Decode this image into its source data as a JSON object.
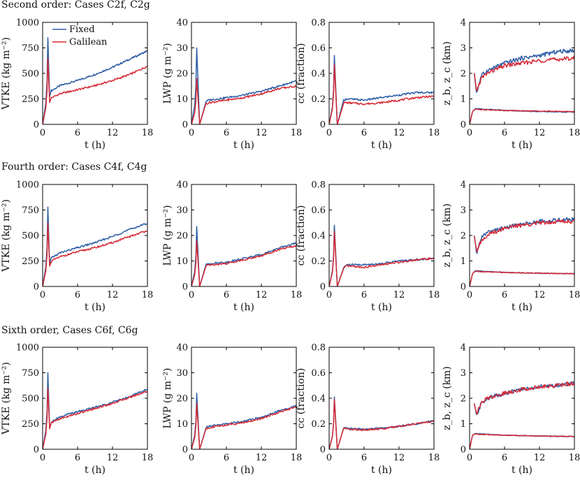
{
  "legend": [
    "Fixed",
    "Galilean"
  ],
  "colors": {
    "fixed": "#2f5ea6",
    "galilean": "#d62a35"
  },
  "rows": [
    {
      "title": "Second order: Cases C2f, C2g"
    },
    {
      "title": "Fourth order: Cases C4f, C4g"
    },
    {
      "title": "Sixth order, Cases C6f, C6g"
    }
  ],
  "xlabel": "t (h)",
  "xticks": [
    "0",
    "6",
    "12",
    "18"
  ],
  "columns": [
    {
      "ylabel": "VTKE (kg m⁻²)",
      "yticks": [
        "0",
        "250",
        "500",
        "750",
        "1000"
      ]
    },
    {
      "ylabel": "LWP (g m⁻²)",
      "yticks": [
        "0",
        "10",
        "20",
        "30",
        "40"
      ]
    },
    {
      "ylabel": "cc (fraction)",
      "yticks": [
        "0",
        "0.2",
        "0.4",
        "0.6",
        "0.8"
      ]
    },
    {
      "ylabel": "z_b, z_c (km)",
      "yticks": [
        "0",
        "1",
        "2",
        "3",
        "4"
      ]
    }
  ],
  "chart_data": [
    {
      "type": "line",
      "row": 0,
      "col": 0,
      "xlim": [
        0,
        18
      ],
      "ylim": [
        0,
        1000
      ],
      "peak": {
        "t": 0.9,
        "fixed": 850,
        "galilean": 650
      },
      "min": {
        "t": 1.2,
        "fixed": 270,
        "galilean": 215
      },
      "series": [
        {
          "name": "Fixed",
          "x": [
            1.5,
            3,
            6,
            9,
            12,
            15,
            18
          ],
          "values": [
            330,
            380,
            430,
            490,
            560,
            640,
            720
          ]
        },
        {
          "name": "Galilean",
          "x": [
            1.5,
            3,
            6,
            9,
            12,
            15,
            18
          ],
          "values": [
            260,
            300,
            340,
            380,
            430,
            490,
            570
          ]
        }
      ]
    },
    {
      "type": "line",
      "row": 0,
      "col": 1,
      "xlim": [
        0,
        18
      ],
      "ylim": [
        0,
        40
      ],
      "peak": {
        "t": 0.9,
        "fixed": 30,
        "galilean": 18
      },
      "min": {
        "t": 1.4,
        "fixed": 0,
        "galilean": 0
      },
      "series": [
        {
          "name": "Fixed",
          "x": [
            2.5,
            3,
            6,
            9,
            12,
            15,
            18
          ],
          "values": [
            9,
            9.5,
            10.5,
            11.5,
            13,
            15,
            17
          ]
        },
        {
          "name": "Galilean",
          "x": [
            2.5,
            3,
            6,
            9,
            12,
            15,
            18
          ],
          "values": [
            8,
            8.5,
            9.5,
            10.5,
            12,
            14,
            15
          ]
        }
      ]
    },
    {
      "type": "line",
      "row": 0,
      "col": 2,
      "xlim": [
        0,
        18
      ],
      "ylim": [
        0,
        0.8
      ],
      "peak": {
        "t": 0.9,
        "fixed": 0.54,
        "galilean": 0.47
      },
      "min": {
        "t": 1.4,
        "fixed": 0.0,
        "galilean": 0.0
      },
      "series": [
        {
          "name": "Fixed",
          "x": [
            2.5,
            3,
            6,
            9,
            12,
            15,
            18
          ],
          "values": [
            0.19,
            0.2,
            0.19,
            0.21,
            0.23,
            0.25,
            0.25
          ]
        },
        {
          "name": "Galilean",
          "x": [
            2.5,
            3,
            6,
            9,
            12,
            15,
            18
          ],
          "values": [
            0.17,
            0.17,
            0.16,
            0.17,
            0.19,
            0.21,
            0.22
          ]
        }
      ]
    },
    {
      "type": "line",
      "row": 0,
      "col": 3,
      "xlim": [
        0,
        18
      ],
      "ylim": [
        0,
        4
      ],
      "series": [
        {
          "name": "Fixed",
          "x": [
            0.8,
            1.2,
            2,
            3,
            6,
            9,
            12,
            15,
            18
          ],
          "values": [
            2.0,
            1.2,
            1.9,
            2.1,
            2.4,
            2.6,
            2.7,
            2.85,
            2.9
          ]
        },
        {
          "name": "Galilean",
          "x": [
            0.8,
            1.2,
            2,
            3,
            6,
            9,
            12,
            15,
            18
          ],
          "values": [
            2.0,
            1.3,
            1.8,
            2.0,
            2.3,
            2.4,
            2.5,
            2.55,
            2.6
          ]
        },
        {
          "name": "Fixed",
          "x": [
            0,
            0.5,
            1,
            2,
            6,
            12,
            18
          ],
          "values": [
            0.0,
            0.5,
            0.62,
            0.6,
            0.55,
            0.5,
            0.48
          ]
        },
        {
          "name": "Galilean",
          "x": [
            0,
            0.5,
            1,
            2,
            6,
            12,
            18
          ],
          "values": [
            0.0,
            0.5,
            0.6,
            0.58,
            0.54,
            0.52,
            0.5
          ]
        }
      ]
    },
    {
      "type": "line",
      "row": 1,
      "col": 0,
      "xlim": [
        0,
        18
      ],
      "ylim": [
        0,
        1000
      ],
      "peak": {
        "t": 0.9,
        "fixed": 780,
        "galilean": 620
      },
      "min": {
        "t": 1.2,
        "fixed": 220,
        "galilean": 200
      },
      "series": [
        {
          "name": "Fixed",
          "x": [
            1.5,
            3,
            6,
            9,
            12,
            15,
            18
          ],
          "values": [
            280,
            330,
            380,
            430,
            490,
            560,
            620
          ]
        },
        {
          "name": "Galilean",
          "x": [
            1.5,
            3,
            6,
            9,
            12,
            15,
            18
          ],
          "values": [
            250,
            290,
            340,
            380,
            430,
            490,
            550
          ]
        }
      ]
    },
    {
      "type": "line",
      "row": 1,
      "col": 1,
      "xlim": [
        0,
        18
      ],
      "ylim": [
        0,
        40
      ],
      "peak": {
        "t": 0.9,
        "fixed": 23.5,
        "galilean": 18
      },
      "min": {
        "t": 1.4,
        "fixed": 0,
        "galilean": 0
      },
      "series": [
        {
          "name": "Fixed",
          "x": [
            2.5,
            3,
            6,
            9,
            12,
            15,
            18
          ],
          "values": [
            8.5,
            9,
            9.5,
            11,
            12.5,
            15,
            17
          ]
        },
        {
          "name": "Galilean",
          "x": [
            2.5,
            3,
            6,
            9,
            12,
            15,
            18
          ],
          "values": [
            8,
            8.5,
            9,
            10.5,
            12,
            14.5,
            16
          ]
        }
      ]
    },
    {
      "type": "line",
      "row": 1,
      "col": 2,
      "xlim": [
        0,
        18
      ],
      "ylim": [
        0,
        0.8
      ],
      "peak": {
        "t": 0.9,
        "fixed": 0.48,
        "galilean": 0.43
      },
      "min": {
        "t": 1.4,
        "fixed": 0.0,
        "galilean": 0.0
      },
      "series": [
        {
          "name": "Fixed",
          "x": [
            2.5,
            3,
            6,
            9,
            12,
            15,
            18
          ],
          "values": [
            0.15,
            0.17,
            0.17,
            0.18,
            0.2,
            0.21,
            0.22
          ]
        },
        {
          "name": "Galilean",
          "x": [
            2.5,
            3,
            6,
            9,
            12,
            15,
            18
          ],
          "values": [
            0.14,
            0.16,
            0.15,
            0.17,
            0.19,
            0.21,
            0.22
          ]
        }
      ]
    },
    {
      "type": "line",
      "row": 1,
      "col": 3,
      "xlim": [
        0,
        18
      ],
      "ylim": [
        0,
        4
      ],
      "series": [
        {
          "name": "Fixed",
          "x": [
            0.8,
            1.2,
            2,
            3,
            6,
            9,
            12,
            15,
            18
          ],
          "values": [
            2.0,
            1.3,
            1.9,
            2.1,
            2.3,
            2.45,
            2.55,
            2.6,
            2.65
          ]
        },
        {
          "name": "Galilean",
          "x": [
            0.8,
            1.2,
            2,
            3,
            6,
            9,
            12,
            15,
            18
          ],
          "values": [
            2.0,
            1.4,
            1.8,
            2.0,
            2.3,
            2.4,
            2.5,
            2.55,
            2.55
          ]
        },
        {
          "name": "Fixed",
          "x": [
            0,
            0.5,
            1,
            2,
            6,
            12,
            18
          ],
          "values": [
            0.0,
            0.5,
            0.62,
            0.6,
            0.55,
            0.52,
            0.5
          ]
        },
        {
          "name": "Galilean",
          "x": [
            0,
            0.5,
            1,
            2,
            6,
            12,
            18
          ],
          "values": [
            0.0,
            0.5,
            0.6,
            0.58,
            0.55,
            0.52,
            0.5
          ]
        }
      ]
    },
    {
      "type": "line",
      "row": 2,
      "col": 0,
      "xlim": [
        0,
        18
      ],
      "ylim": [
        0,
        1000
      ],
      "peak": {
        "t": 0.9,
        "fixed": 750,
        "galilean": 600
      },
      "min": {
        "t": 1.2,
        "fixed": 210,
        "galilean": 200
      },
      "series": [
        {
          "name": "Fixed",
          "x": [
            1.5,
            3,
            6,
            9,
            12,
            15,
            18
          ],
          "values": [
            270,
            320,
            370,
            410,
            460,
            520,
            590
          ]
        },
        {
          "name": "Galilean",
          "x": [
            1.5,
            3,
            6,
            9,
            12,
            15,
            18
          ],
          "values": [
            260,
            300,
            350,
            400,
            450,
            510,
            570
          ]
        }
      ]
    },
    {
      "type": "line",
      "row": 2,
      "col": 1,
      "xlim": [
        0,
        18
      ],
      "ylim": [
        0,
        40
      ],
      "peak": {
        "t": 0.9,
        "fixed": 22,
        "galilean": 18
      },
      "min": {
        "t": 1.4,
        "fixed": 0,
        "galilean": 0
      },
      "series": [
        {
          "name": "Fixed",
          "x": [
            2.5,
            3,
            6,
            9,
            12,
            15,
            18
          ],
          "values": [
            8.5,
            9,
            10,
            11,
            12.5,
            15,
            17
          ]
        },
        {
          "name": "Galilean",
          "x": [
            2.5,
            3,
            6,
            9,
            12,
            15,
            18
          ],
          "values": [
            8,
            8.5,
            9.5,
            10.5,
            12,
            14.5,
            16.5
          ]
        }
      ]
    },
    {
      "type": "line",
      "row": 2,
      "col": 2,
      "xlim": [
        0,
        18
      ],
      "ylim": [
        0,
        0.8
      ],
      "peak": {
        "t": 0.9,
        "fixed": 0.41,
        "galilean": 0.39
      },
      "min": {
        "t": 1.4,
        "fixed": 0.0,
        "galilean": 0.0
      },
      "series": [
        {
          "name": "Fixed",
          "x": [
            2.5,
            3,
            6,
            9,
            12,
            15,
            18
          ],
          "values": [
            0.17,
            0.165,
            0.155,
            0.165,
            0.18,
            0.2,
            0.225
          ]
        },
        {
          "name": "Galilean",
          "x": [
            2.5,
            3,
            6,
            9,
            12,
            15,
            18
          ],
          "values": [
            0.165,
            0.16,
            0.15,
            0.16,
            0.18,
            0.2,
            0.22
          ]
        }
      ]
    },
    {
      "type": "line",
      "row": 2,
      "col": 3,
      "xlim": [
        0,
        18
      ],
      "ylim": [
        0,
        4
      ],
      "series": [
        {
          "name": "Fixed",
          "x": [
            0.8,
            1.2,
            2,
            3,
            6,
            9,
            12,
            15,
            18
          ],
          "values": [
            1.8,
            1.3,
            1.8,
            2.0,
            2.2,
            2.35,
            2.45,
            2.5,
            2.6
          ]
        },
        {
          "name": "Galilean",
          "x": [
            0.8,
            1.2,
            2,
            3,
            6,
            9,
            12,
            15,
            18
          ],
          "values": [
            1.8,
            1.4,
            1.8,
            2.0,
            2.2,
            2.35,
            2.45,
            2.5,
            2.6
          ]
        },
        {
          "name": "Fixed",
          "x": [
            0,
            0.5,
            1,
            2,
            6,
            12,
            18
          ],
          "values": [
            0.0,
            0.55,
            0.62,
            0.6,
            0.55,
            0.52,
            0.5
          ]
        },
        {
          "name": "Galilean",
          "x": [
            0,
            0.5,
            1,
            2,
            6,
            12,
            18
          ],
          "values": [
            0.0,
            0.55,
            0.6,
            0.58,
            0.55,
            0.52,
            0.5
          ]
        }
      ]
    }
  ]
}
